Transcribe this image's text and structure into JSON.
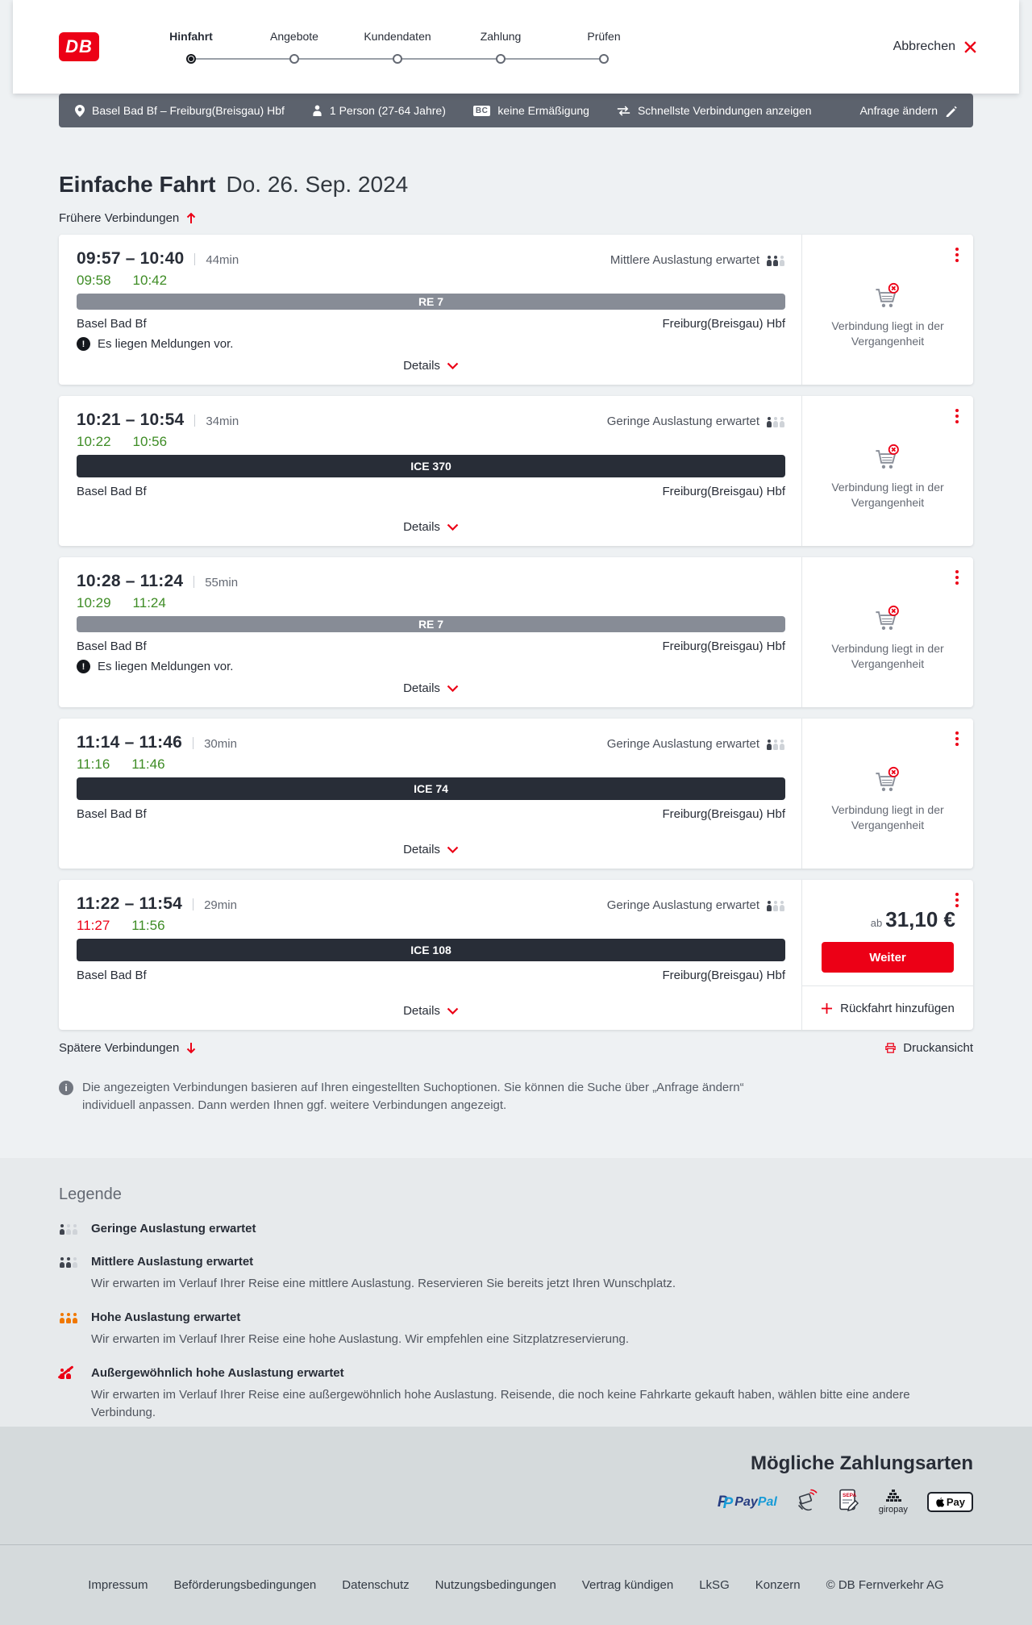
{
  "header": {
    "logo_text": "DB",
    "steps": [
      {
        "label": "Hinfahrt",
        "active": true
      },
      {
        "label": "Angebote",
        "active": false
      },
      {
        "label": "Kundendaten",
        "active": false
      },
      {
        "label": "Zahlung",
        "active": false
      },
      {
        "label": "Prüfen",
        "active": false
      }
    ],
    "cancel_label": "Abbrechen"
  },
  "search_summary": {
    "route": "Basel Bad Bf – Freiburg(Breisgau) Hbf",
    "passengers": "1 Person (27-64 Jahre)",
    "bahncard_badge": "BC",
    "discount": "keine Ermäßigung",
    "sort_mode": "Schnellste Verbindungen anzeigen",
    "edit_label": "Anfrage ändern"
  },
  "results": {
    "title": "Einfache Fahrt",
    "date": "Do. 26. Sep. 2024",
    "earlier_label": "Frühere Verbindungen",
    "later_label": "Spätere Verbindungen",
    "print_label": "Druckansicht",
    "info_text": "Die angezeigten Verbindungen basieren auf Ihren eingestellten Suchoptionen. Sie können die Suche über „Anfrage ändern“ individuell anpassen. Dann werden Ihnen ggf. weitere Verbindungen angezeigt."
  },
  "connections": [
    {
      "range": "09:57 – 10:40",
      "duration": "44min",
      "occupancy": "Mittlere Auslastung erwartet",
      "occupancy_level": 2,
      "rt_depart": "09:58",
      "rt_arrive": "10:42",
      "rt_depart_delayed": false,
      "train": "RE 7",
      "train_class": "re",
      "from": "Basel Bad Bf",
      "to": "Freiburg(Breisgau) Hbf",
      "notice": "Es liegen Meldungen vor.",
      "details_label": "Details",
      "past_text": "Verbindung liegt in der Vergangenheit"
    },
    {
      "range": "10:21 – 10:54",
      "duration": "34min",
      "occupancy": "Geringe Auslastung erwartet",
      "occupancy_level": 1,
      "rt_depart": "10:22",
      "rt_arrive": "10:56",
      "rt_depart_delayed": false,
      "train": "ICE 370",
      "train_class": "ice",
      "from": "Basel Bad Bf",
      "to": "Freiburg(Breisgau) Hbf",
      "details_label": "Details",
      "past_text": "Verbindung liegt in der Vergangenheit"
    },
    {
      "range": "10:28 – 11:24",
      "duration": "55min",
      "rt_depart": "10:29",
      "rt_arrive": "11:24",
      "rt_depart_delayed": false,
      "train": "RE 7",
      "train_class": "re",
      "from": "Basel Bad Bf",
      "to": "Freiburg(Breisgau) Hbf",
      "notice": "Es liegen Meldungen vor.",
      "details_label": "Details",
      "past_text": "Verbindung liegt in der Vergangenheit"
    },
    {
      "range": "11:14 – 11:46",
      "duration": "30min",
      "occupancy": "Geringe Auslastung erwartet",
      "occupancy_level": 1,
      "rt_depart": "11:16",
      "rt_arrive": "11:46",
      "rt_depart_delayed": false,
      "train": "ICE 74",
      "train_class": "ice",
      "from": "Basel Bad Bf",
      "to": "Freiburg(Breisgau) Hbf",
      "details_label": "Details",
      "past_text": "Verbindung liegt in der Vergangenheit"
    },
    {
      "range": "11:22 – 11:54",
      "duration": "29min",
      "occupancy": "Geringe Auslastung erwartet",
      "occupancy_level": 1,
      "rt_depart": "11:27",
      "rt_arrive": "11:56",
      "rt_depart_delayed": true,
      "train": "ICE 108",
      "train_class": "ice",
      "from": "Basel Bad Bf",
      "to": "Freiburg(Breisgau) Hbf",
      "details_label": "Details",
      "price": {
        "prefix": "ab",
        "amount": "31,10 €"
      },
      "cta": "Weiter",
      "add_return": "Rückfahrt hinzufügen"
    }
  ],
  "legend": {
    "title": "Legende",
    "items": [
      {
        "label": "Geringe Auslastung erwartet",
        "count": 3,
        "level": 1,
        "color": "low"
      },
      {
        "label": "Mittlere Auslastung erwartet",
        "count": 3,
        "level": 2,
        "color": "low",
        "desc": "Wir erwarten im Verlauf Ihrer Reise eine mittlere Auslastung. Reservieren Sie bereits jetzt Ihren Wunschplatz."
      },
      {
        "label": "Hohe Auslastung erwartet",
        "count": 3,
        "level": 3,
        "color": "high",
        "desc": "Wir erwarten im Verlauf Ihrer Reise eine hohe Auslastung. Wir empfehlen eine Sitzplatzreservierung."
      },
      {
        "label": "Außergewöhnlich hohe Auslastung erwartet",
        "count": 2,
        "level": 2,
        "color": "max",
        "slash": true,
        "desc": "Wir erwarten im Verlauf Ihrer Reise eine außergewöhnlich hohe Auslastung. Reisende, die noch keine Fahrkarte gekauft haben, wählen bitte eine andere Verbindung."
      }
    ]
  },
  "payment": {
    "title": "Mögliche Zahlungsarten",
    "paypal": {
      "mark_back": "P",
      "mark_front": "P",
      "word_pay": "Pay",
      "word_pal": "Pal"
    },
    "sepa_label": "SEPA",
    "giropay_label": "giropay",
    "applepay_label": "Pay"
  },
  "footer": {
    "links": [
      "Impressum",
      "Beförderungsbedingungen",
      "Datenschutz",
      "Nutzungsbedingungen",
      "Vertrag kündigen",
      "LkSG",
      "Konzern"
    ],
    "copyright": "© DB Fernverkehr AG"
  },
  "colors": {
    "brand_red": "#ec0016",
    "dark": "#282d37",
    "re_bar": "#878c96",
    "green_ontime": "#3e8c25"
  }
}
